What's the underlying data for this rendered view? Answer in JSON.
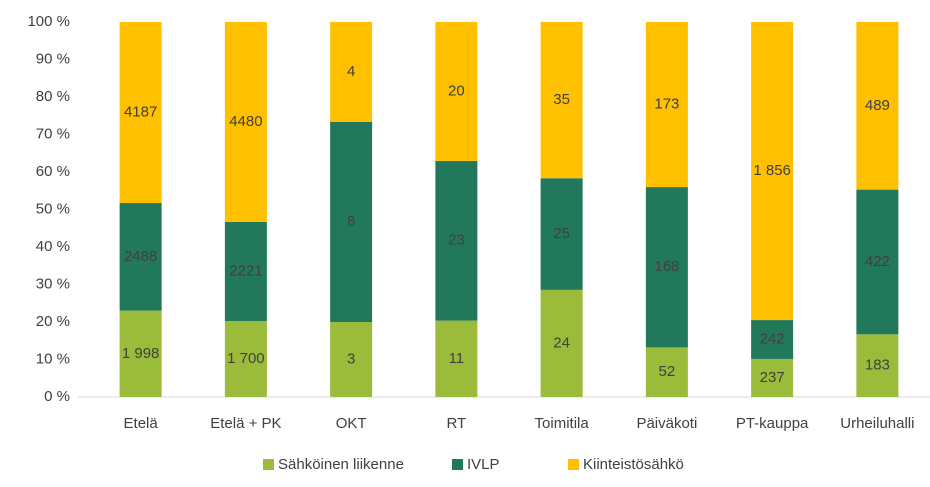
{
  "chart_data": {
    "type": "bar",
    "stacked": "percent",
    "categories": [
      "Etelä",
      "Etelä + PK",
      "OKT",
      "RT",
      "Toimitila",
      "Päiväkoti",
      "PT-kauppa",
      "Urheiluhalli"
    ],
    "series": [
      {
        "name": "Sähköinen liikenne",
        "color": "#9bbb3b",
        "values": [
          1998,
          1700,
          3,
          11,
          24,
          52,
          237,
          183
        ],
        "value_labels": [
          "1 998",
          "1 700",
          "3",
          "11",
          "24",
          "52",
          "237",
          "183"
        ]
      },
      {
        "name": "IVLP",
        "color": "#22785a",
        "values": [
          2488,
          2221,
          8,
          23,
          25,
          168,
          242,
          422
        ]
      },
      {
        "name": "Kiinteistösähkö",
        "color": "#ffc000",
        "values": [
          4187,
          4480,
          4,
          20,
          35,
          173,
          1856,
          489
        ],
        "value_labels": [
          "4187",
          "4480",
          "4",
          "20",
          "35",
          "173",
          "1 856",
          "489"
        ]
      }
    ],
    "ylim": [
      0,
      100
    ],
    "yticks": [
      {
        "value": 0,
        "label": "0 %"
      },
      {
        "value": 10,
        "label": "10 %"
      },
      {
        "value": 20,
        "label": "20 %"
      },
      {
        "value": 30,
        "label": "30 %"
      },
      {
        "value": 40,
        "label": "40 %"
      },
      {
        "value": 50,
        "label": "50 %"
      },
      {
        "value": 60,
        "label": "60 %"
      },
      {
        "value": 70,
        "label": "70 %"
      },
      {
        "value": 80,
        "label": "80 %"
      },
      {
        "value": 90,
        "label": "90 %"
      },
      {
        "value": 100,
        "label": "100 %"
      }
    ],
    "grid": false,
    "legend": "bottom"
  }
}
